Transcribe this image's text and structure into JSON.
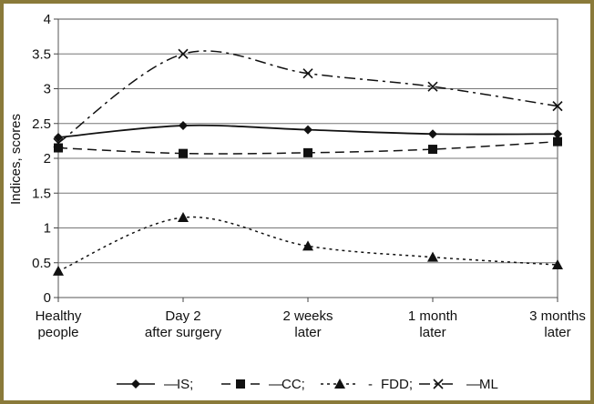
{
  "chart_data": {
    "type": "line",
    "title": "",
    "ylabel": "Indices, scores",
    "xlabel": "",
    "ylim": [
      0,
      4
    ],
    "yticks": [
      "0",
      "0.5",
      "1",
      "1.5",
      "2",
      "2.5",
      "3",
      "3.5",
      "4"
    ],
    "categories": [
      [
        "Healthy",
        "people"
      ],
      [
        "Day 2",
        "after surgery"
      ],
      [
        "2 weeks",
        "later"
      ],
      [
        "1 month",
        "later"
      ],
      [
        "3 months",
        "later"
      ]
    ],
    "grid": "horizontal",
    "legend_position": "bottom",
    "series": [
      {
        "name": "IS;",
        "legend_prefix": "—",
        "marker": "diamond",
        "line": "solid",
        "values": [
          2.3,
          2.47,
          2.41,
          2.35,
          2.35
        ]
      },
      {
        "name": "CC;",
        "legend_prefix": "—",
        "marker": "square",
        "line": "dash",
        "values": [
          2.15,
          2.07,
          2.08,
          2.13,
          2.24
        ]
      },
      {
        "name": "FDD;",
        "legend_prefix": "-",
        "marker": "triangle",
        "line": "dot",
        "values": [
          0.38,
          1.15,
          0.74,
          0.58,
          0.47
        ]
      },
      {
        "name": "ML",
        "legend_prefix": "—",
        "marker": "x",
        "line": "dashdot",
        "values": [
          2.22,
          3.5,
          3.22,
          3.03,
          2.75
        ]
      }
    ]
  }
}
